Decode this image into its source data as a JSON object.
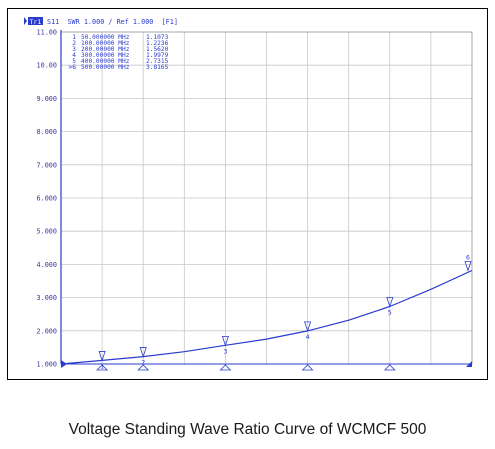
{
  "chart_data": {
    "type": "line",
    "header": {
      "trace_tag": "Tr1",
      "param": "S11",
      "format": "SWR",
      "scale": "1.000",
      "ref": "Ref 1.000",
      "channel": "[F1]",
      "title_text": "S11  SWR 1.000 / Ref 1.000  [F1]"
    },
    "ylim": [
      1.0,
      11.0
    ],
    "yticks": [
      "11.00",
      "10.00",
      "9.000",
      "8.000",
      "7.000",
      "6.000",
      "5.000",
      "4.000",
      "3.000",
      "2.000",
      "1.000"
    ],
    "xlim_mhz": [
      0,
      500
    ],
    "x_divisions": 10,
    "series": [
      {
        "color": "#2a3bcf",
        "points": [
          {
            "x": 0,
            "y": 1.0
          },
          {
            "x": 50,
            "y": 1.1073
          },
          {
            "x": 100,
            "y": 1.2236
          },
          {
            "x": 150,
            "y": 1.37
          },
          {
            "x": 200,
            "y": 1.562
          },
          {
            "x": 250,
            "y": 1.75
          },
          {
            "x": 300,
            "y": 1.9979
          },
          {
            "x": 350,
            "y": 2.32
          },
          {
            "x": 400,
            "y": 2.7315
          },
          {
            "x": 450,
            "y": 3.25
          },
          {
            "x": 500,
            "y": 3.8165
          }
        ]
      }
    ],
    "markers": [
      {
        "id": "1",
        "label": "1",
        "freq": "50.000000 MHz",
        "x": 50,
        "value": "1.1073",
        "y": 1.1073
      },
      {
        "id": "2",
        "label": "2",
        "freq": "100.00000 MHz",
        "x": 100,
        "value": "1.2236",
        "y": 1.2236
      },
      {
        "id": "3",
        "label": "3",
        "freq": "200.00000 MHz",
        "x": 200,
        "value": "1.5620",
        "y": 1.562
      },
      {
        "id": "4",
        "label": "4",
        "freq": "300.00000 MHz",
        "x": 300,
        "value": "1.9979",
        "y": 1.9979
      },
      {
        "id": "5",
        "label": "5",
        "freq": "400.00000 MHz",
        "x": 400,
        "value": "2.7315",
        "y": 2.7315
      },
      {
        "id": "6",
        "label": ">6",
        "freq": "500.00000 MHz",
        "x": 500,
        "value": "3.8165",
        "y": 3.8165
      }
    ],
    "colors": {
      "trace": "#2a3bcf",
      "grid": "#c8c8c8",
      "axis": "#2a3bcf",
      "text": "#3a3a9a"
    }
  },
  "caption": "Voltage Standing Wave Ratio Curve of WCMCF 500"
}
